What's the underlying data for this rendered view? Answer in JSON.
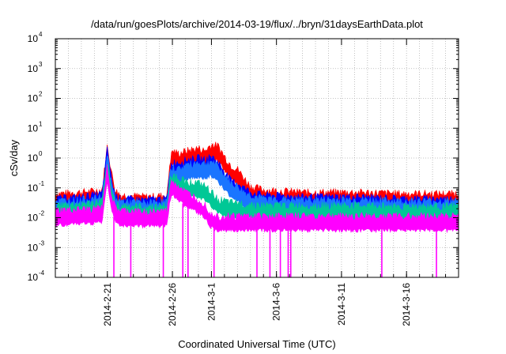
{
  "chart_data": {
    "type": "line",
    "title": "/data/run/goesPlots/archive/2014-03-19/flux/../bryn/31daysEarthData.plot",
    "xlabel": "Coordinated Universal Time (UTC)",
    "ylabel": "cSv/day",
    "yscale": "log",
    "ylim": [
      0.0001,
      10000
    ],
    "yticks": [
      {
        "value": 0.0001,
        "base": "10",
        "exp": "-4"
      },
      {
        "value": 0.001,
        "base": "10",
        "exp": "-3"
      },
      {
        "value": 0.01,
        "base": "10",
        "exp": "-2"
      },
      {
        "value": 0.1,
        "base": "10",
        "exp": "-1"
      },
      {
        "value": 1,
        "base": "10",
        "exp": "0"
      },
      {
        "value": 10,
        "base": "10",
        "exp": "1"
      },
      {
        "value": 100,
        "base": "10",
        "exp": "2"
      },
      {
        "value": 1000,
        "base": "10",
        "exp": "3"
      },
      {
        "value": 10000,
        "base": "10",
        "exp": "4"
      }
    ],
    "xlim": [
      "2014-02-17",
      "2014-03-20"
    ],
    "xticks": [
      "2014-2-21",
      "2014-2-26",
      "2014-3-1",
      "2014-3-6",
      "2014-3-11",
      "2014-3-16"
    ],
    "grid": true,
    "series": [
      {
        "color": "#ff0000",
        "x": [
          "2014-02-17",
          "2014-02-19",
          "2014-02-20",
          "2014-02-20.6",
          "2014-02-21",
          "2014-02-21.3",
          "2014-02-21.6",
          "2014-02-22",
          "2014-02-24",
          "2014-02-25.6",
          "2014-02-25.8",
          "2014-02-26",
          "2014-02-26.5",
          "2014-02-27",
          "2014-02-28",
          "2014-02-28.5",
          "2014-03-01",
          "2014-03-01.5",
          "2014-03-02",
          "2014-03-02.5",
          "2014-03-03",
          "2014-03-03.5",
          "2014-03-04",
          "2014-03-05",
          "2014-03-08",
          "2014-03-12",
          "2014-03-16",
          "2014-03-20"
        ],
        "values": [
          0.045,
          0.05,
          0.055,
          0.06,
          2.0,
          0.25,
          0.06,
          0.04,
          0.035,
          0.04,
          0.5,
          1.2,
          1.0,
          1.2,
          1.5,
          1.2,
          2.0,
          1.8,
          0.8,
          0.4,
          0.3,
          0.15,
          0.08,
          0.06,
          0.05,
          0.05,
          0.045,
          0.045
        ]
      },
      {
        "color": "#0000ff",
        "x": [
          "2014-02-17",
          "2014-02-19",
          "2014-02-20",
          "2014-02-20.6",
          "2014-02-21",
          "2014-02-21.3",
          "2014-02-21.6",
          "2014-02-22",
          "2014-02-24",
          "2014-02-25.6",
          "2014-02-25.8",
          "2014-02-26",
          "2014-02-26.5",
          "2014-02-27",
          "2014-02-28",
          "2014-02-28.5",
          "2014-03-01",
          "2014-03-01.5",
          "2014-03-02",
          "2014-03-02.5",
          "2014-03-03",
          "2014-03-03.5",
          "2014-03-04",
          "2014-03-05",
          "2014-03-08",
          "2014-03-12",
          "2014-03-16",
          "2014-03-20"
        ],
        "values": [
          0.03,
          0.035,
          0.04,
          0.045,
          1.5,
          0.15,
          0.04,
          0.03,
          0.028,
          0.03,
          0.3,
          0.5,
          0.5,
          0.6,
          0.7,
          0.6,
          0.8,
          0.5,
          0.25,
          0.12,
          0.1,
          0.07,
          0.05,
          0.04,
          0.035,
          0.035,
          0.03,
          0.03
        ]
      },
      {
        "color": "#1a75ff",
        "x": [
          "2014-02-17",
          "2014-02-19",
          "2014-02-20",
          "2014-02-20.6",
          "2014-02-21",
          "2014-02-21.3",
          "2014-02-21.6",
          "2014-02-22",
          "2014-02-24",
          "2014-02-25.6",
          "2014-02-25.8",
          "2014-02-26",
          "2014-02-26.5",
          "2014-02-27",
          "2014-02-28",
          "2014-02-28.5",
          "2014-03-01",
          "2014-03-01.5",
          "2014-03-02",
          "2014-03-02.5",
          "2014-03-03",
          "2014-03-03.5",
          "2014-03-04",
          "2014-03-05",
          "2014-03-08",
          "2014-03-12",
          "2014-03-16",
          "2014-03-20"
        ],
        "values": [
          0.025,
          0.028,
          0.03,
          0.035,
          1.0,
          0.1,
          0.03,
          0.025,
          0.022,
          0.025,
          0.2,
          0.35,
          0.3,
          0.4,
          0.5,
          0.45,
          0.55,
          0.35,
          0.2,
          0.1,
          0.08,
          0.05,
          0.04,
          0.03,
          0.028,
          0.028,
          0.025,
          0.025
        ]
      },
      {
        "color": "#00c896",
        "x": [
          "2014-02-17",
          "2014-02-19",
          "2014-02-20",
          "2014-02-20.6",
          "2014-02-21",
          "2014-02-21.3",
          "2014-02-21.6",
          "2014-02-22",
          "2014-02-24",
          "2014-02-25.6",
          "2014-02-25.8",
          "2014-02-26",
          "2014-02-26.5",
          "2014-02-27",
          "2014-02-28",
          "2014-02-28.5",
          "2014-03-01",
          "2014-03-01.5",
          "2014-03-02",
          "2014-03-02.5",
          "2014-03-03",
          "2014-03-03.5",
          "2014-03-04",
          "2014-03-05",
          "2014-03-08",
          "2014-03-12",
          "2014-03-16",
          "2014-03-20"
        ],
        "values": [
          0.018,
          0.02,
          0.022,
          0.025,
          0.5,
          0.06,
          0.022,
          0.018,
          0.016,
          0.018,
          0.12,
          0.2,
          0.15,
          0.12,
          0.1,
          0.08,
          0.05,
          0.03,
          0.025,
          0.022,
          0.022,
          0.02,
          0.02,
          0.018,
          0.018,
          0.018,
          0.017,
          0.017
        ]
      },
      {
        "color": "#ff00ff",
        "x": [
          "2014-02-17",
          "2014-02-19",
          "2014-02-20",
          "2014-02-20.6",
          "2014-02-21",
          "2014-02-21.3",
          "2014-02-21.6",
          "2014-02-22",
          "2014-02-24",
          "2014-02-25.6",
          "2014-02-25.8",
          "2014-02-26",
          "2014-02-26.5",
          "2014-02-27",
          "2014-02-28",
          "2014-02-28.5",
          "2014-03-01",
          "2014-03-01.5",
          "2014-03-02",
          "2014-03-02.5",
          "2014-03-03",
          "2014-03-03.5",
          "2014-03-04",
          "2014-03-05",
          "2014-03-08",
          "2014-03-12",
          "2014-03-16",
          "2014-03-20"
        ],
        "values": [
          0.012,
          0.013,
          0.014,
          0.015,
          0.4,
          0.04,
          0.015,
          0.012,
          0.011,
          0.012,
          0.08,
          0.12,
          0.08,
          0.05,
          0.03,
          0.02,
          0.01,
          0.008,
          0.008,
          0.008,
          0.008,
          0.008,
          0.008,
          0.008,
          0.008,
          0.008,
          0.008,
          0.008
        ]
      }
    ],
    "dropouts": [
      {
        "x": "2014-02-21.5",
        "min": 0.0001
      },
      {
        "x": "2014-02-22.8",
        "min": 0.0001
      },
      {
        "x": "2014-02-25.3",
        "min": 0.0001
      },
      {
        "x": "2014-02-26.8",
        "min": 0.0001
      },
      {
        "x": "2014-02-27.2",
        "min": 0.0001
      },
      {
        "x": "2014-03-01.2",
        "min": 0.0001
      },
      {
        "x": "2014-03-04.5",
        "min": 0.0001
      },
      {
        "x": "2014-03-05.5",
        "min": 0.0001
      },
      {
        "x": "2014-03-06.3",
        "min": 0.0001
      },
      {
        "x": "2014-03-06.9",
        "min": 0.0001
      },
      {
        "x": "2014-03-07.1",
        "min": 0.0001
      },
      {
        "x": "2014-03-14.1",
        "min": 0.0001
      },
      {
        "x": "2014-03-18.3",
        "min": 0.0001
      }
    ]
  }
}
